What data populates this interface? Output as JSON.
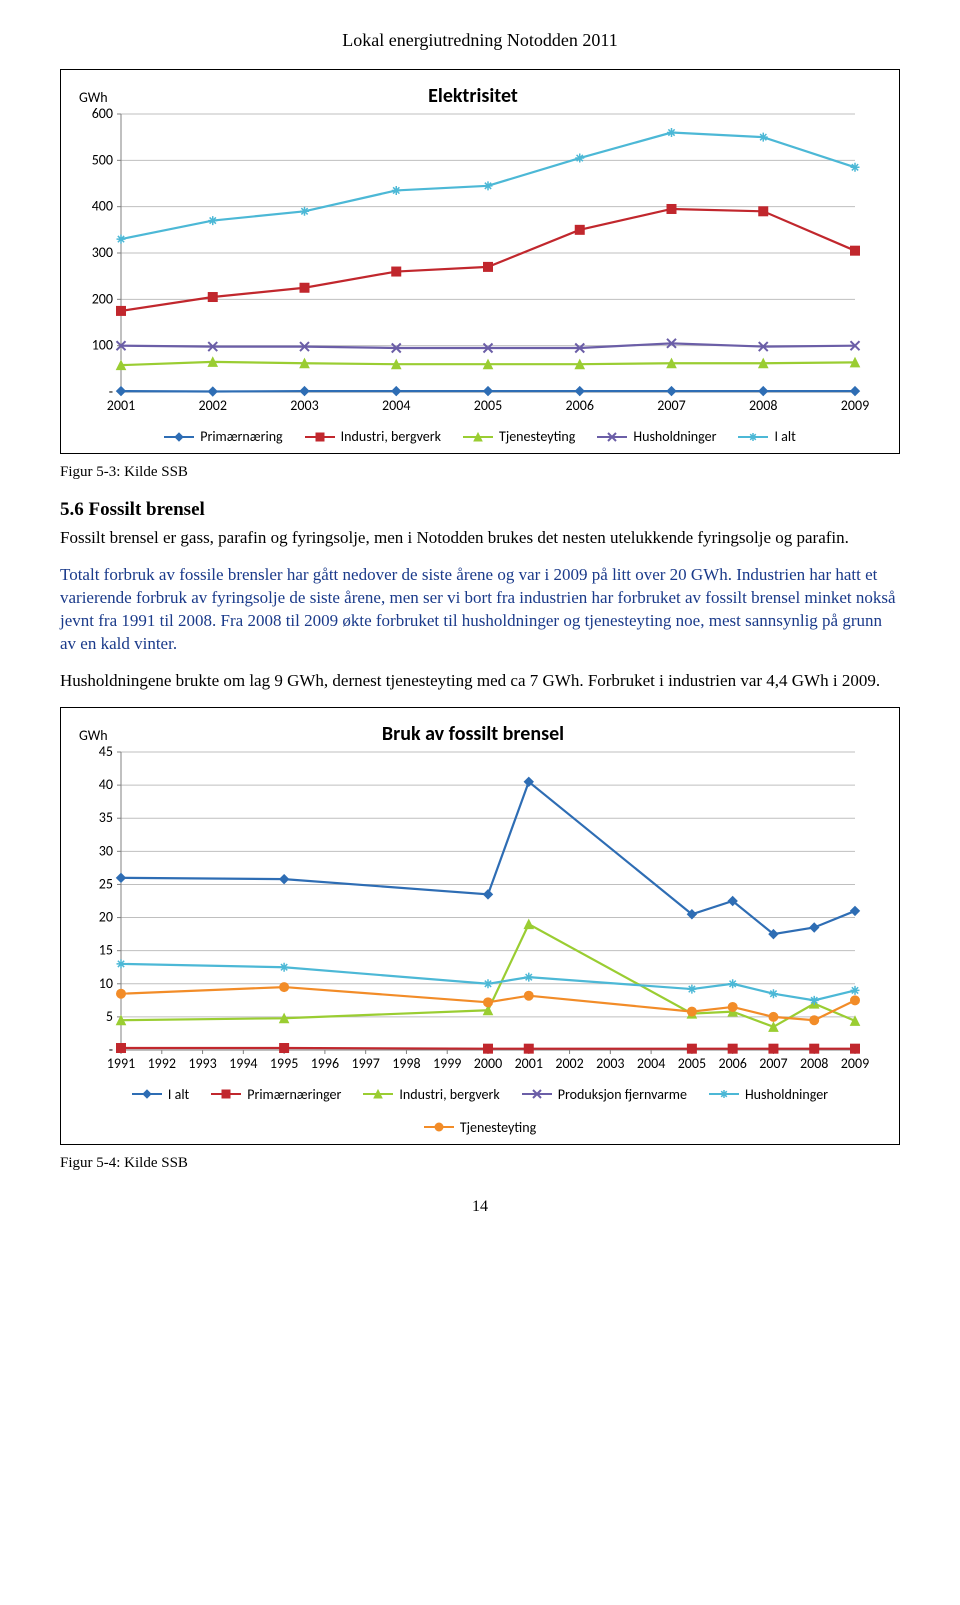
{
  "doc_header": "Lokal energiutredning Notodden 2011",
  "chart1": {
    "title": "Elektrisitet",
    "y_unit": "GWh",
    "ylim": [
      0,
      600
    ],
    "ytick_step": 100,
    "years": [
      "2001",
      "2002",
      "2003",
      "2004",
      "2005",
      "2006",
      "2007",
      "2008",
      "2009"
    ],
    "series": [
      {
        "label": "Primærnæring",
        "color": "#2e6db4",
        "marker": "diamond",
        "values": [
          2,
          1,
          2,
          2,
          2,
          2,
          2,
          2,
          2
        ]
      },
      {
        "label": "Industri, bergverk",
        "color": "#c1272d",
        "marker": "square",
        "values": [
          175,
          205,
          225,
          260,
          270,
          350,
          395,
          390,
          305
        ]
      },
      {
        "label": "Tjenesteyting",
        "color": "#9acd32",
        "marker": "triangle",
        "values": [
          58,
          65,
          62,
          60,
          60,
          60,
          62,
          62,
          64
        ]
      },
      {
        "label": "Husholdninger",
        "color": "#6b5ea7",
        "marker": "x",
        "values": [
          100,
          98,
          98,
          95,
          95,
          95,
          105,
          98,
          100
        ]
      },
      {
        "label": "I alt",
        "color": "#4cb8d6",
        "marker": "star",
        "values": [
          330,
          370,
          390,
          435,
          445,
          505,
          560,
          550,
          485
        ]
      }
    ],
    "background_color": "#ffffff",
    "grid_color": "#bfbfbf",
    "title_fontsize": 20,
    "label_fontsize": 14
  },
  "caption1": "Figur 5-3: Kilde SSB",
  "section_head": "5.6   Fossilt brensel",
  "para1": "Fossilt brensel er gass, parafin og fyringsolje, men i Notodden brukes det nesten utelukkende fyringsolje og parafin.",
  "para2": "Totalt forbruk av fossile brensler har gått nedover de siste årene og var i 2009 på litt over 20 GWh. Industrien har hatt et varierende forbruk av fyringsolje de siste årene, men ser vi bort fra industrien har forbruket av fossilt brensel minket nokså jevnt fra 1991 til 2008. Fra 2008 til 2009 økte forbruket til husholdninger og tjenesteyting noe, mest sannsynlig på grunn av en kald vinter.",
  "para3": "Husholdningene brukte om lag 9 GWh, dernest tjenesteyting med ca 7 GWh. Forbruket i industrien var 4,4 GWh i 2009.",
  "chart2": {
    "title": "Bruk av fossilt brensel",
    "y_unit": "GWh",
    "ylim": [
      0,
      45
    ],
    "ytick_step": 5,
    "years": [
      "1991",
      "1992",
      "1993",
      "1994",
      "1995",
      "1996",
      "1997",
      "1998",
      "1999",
      "2000",
      "2001",
      "2002",
      "2003",
      "2004",
      "2005",
      "2006",
      "2007",
      "2008",
      "2009"
    ],
    "series": [
      {
        "label": "I alt",
        "color": "#2e6db4",
        "marker": "diamond",
        "values": [
          26.0,
          null,
          null,
          null,
          25.8,
          null,
          null,
          null,
          null,
          23.5,
          40.5,
          null,
          null,
          null,
          20.5,
          22.5,
          17.5,
          18.5,
          21.0
        ]
      },
      {
        "label": "Primærnæringer",
        "color": "#c1272d",
        "marker": "square",
        "values": [
          0.3,
          null,
          null,
          null,
          0.3,
          null,
          null,
          null,
          null,
          0.2,
          0.2,
          null,
          null,
          null,
          0.2,
          0.2,
          0.2,
          0.2,
          0.2
        ]
      },
      {
        "label": "Industri, bergverk",
        "color": "#9acd32",
        "marker": "triangle",
        "values": [
          4.5,
          null,
          null,
          null,
          4.8,
          null,
          null,
          null,
          null,
          6.0,
          19.0,
          null,
          null,
          null,
          5.5,
          5.8,
          3.5,
          7.0,
          4.4
        ]
      },
      {
        "label": "Produksjon fjernvarme",
        "color": "#6b5ea7",
        "marker": "x",
        "values": [
          null,
          null,
          null,
          null,
          null,
          null,
          null,
          null,
          null,
          null,
          null,
          null,
          null,
          null,
          null,
          null,
          null,
          null,
          null
        ]
      },
      {
        "label": "Husholdninger",
        "color": "#4cb8d6",
        "marker": "star",
        "values": [
          13.0,
          null,
          null,
          null,
          12.5,
          null,
          null,
          null,
          null,
          10.0,
          11.0,
          null,
          null,
          null,
          9.2,
          10.0,
          8.5,
          7.5,
          9.0
        ]
      },
      {
        "label": "Tjenesteyting",
        "color": "#f28c28",
        "marker": "circle",
        "values": [
          8.5,
          null,
          null,
          null,
          9.5,
          null,
          null,
          null,
          null,
          7.2,
          8.2,
          null,
          null,
          null,
          5.8,
          6.5,
          5.0,
          4.5,
          7.5
        ]
      }
    ],
    "background_color": "#ffffff",
    "grid_color": "#bfbfbf",
    "title_fontsize": 20,
    "label_fontsize": 14
  },
  "caption2": "Figur 5-4: Kilde SSB",
  "page_num": "14"
}
